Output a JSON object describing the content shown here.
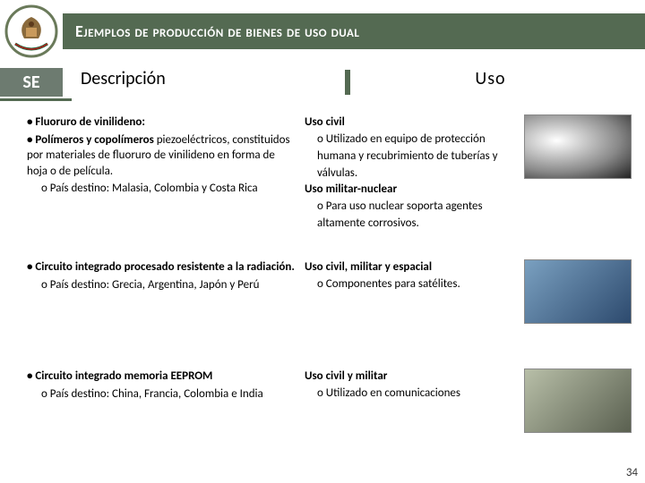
{
  "colors": {
    "accent": "#546a52",
    "se_bg": "#6d7b70",
    "text": "#1a1a1a"
  },
  "title": "Ejemplos de producción de bienes de uso dual",
  "se_label": "SE",
  "columns": {
    "left": "Descripción",
    "right": "Uso"
  },
  "rows": [
    {
      "desc_items": [
        {
          "bold_label": "Fluoruro de vinilideno:",
          "rest": ""
        },
        {
          "bold_label": "Polímeros y copolímeros",
          "rest": " piezoeléctricos, constituidos por materiales de fluoruro de vinilideno en forma de hoja o de película."
        }
      ],
      "destino": "País destino: Malasia, Colombia y Costa Rica",
      "uso": [
        {
          "title": "Uso civil",
          "items": [
            "Utilizado en equipo de protección humana y recubrimiento de tuberías y válvulas."
          ]
        },
        {
          "title": "Uso militar-nuclear",
          "items": [
            "Para uso nuclear soporta agentes altamente corrosivos."
          ]
        }
      ],
      "img_class": "tube"
    },
    {
      "desc_items": [
        {
          "bold_label": "Circuito integrado procesado resistente a la radiación.",
          "rest": ""
        }
      ],
      "destino": "País destino: Grecia, Argentina, Japón y Perú",
      "uso": [
        {
          "title": "Uso civil, militar y espacial",
          "items": [
            "Componentes para satélites."
          ]
        }
      ],
      "img_class": "chip"
    },
    {
      "desc_items": [
        {
          "bold_label": "Circuito integrado memoria EEPROM",
          "rest": ""
        }
      ],
      "destino": "País destino: China, Francia, Colombia e India",
      "uso": [
        {
          "title": "Uso civil y militar",
          "items": [
            "Utilizado en comunicaciones"
          ]
        }
      ],
      "img_class": "eeprom"
    }
  ],
  "page_number": "34"
}
